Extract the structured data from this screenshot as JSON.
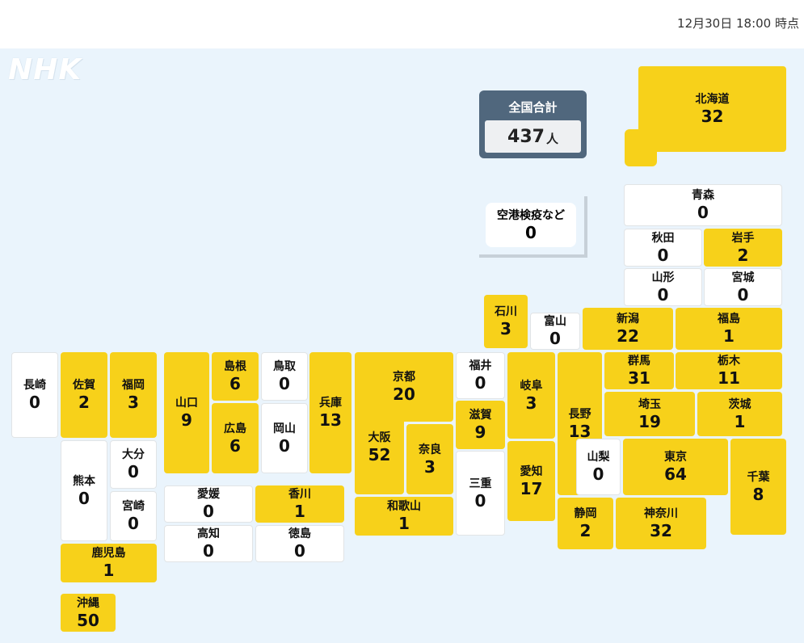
{
  "timestamp": "12月30日 18:00 時点",
  "logo": "NHK",
  "total": {
    "label": "全国合計",
    "value": "437",
    "unit": "人"
  },
  "airport": {
    "name": "空港検疫など",
    "value": "0"
  },
  "colors": {
    "case_present": "#f7d11a",
    "zero": "#ffffff",
    "total_box": "#50677d",
    "background": "#eaf4fc"
  },
  "prefectures": [
    {
      "id": "hokkaido",
      "name": "北海道",
      "value": "32"
    },
    {
      "id": "aomori",
      "name": "青森",
      "value": "0"
    },
    {
      "id": "akita",
      "name": "秋田",
      "value": "0"
    },
    {
      "id": "iwate",
      "name": "岩手",
      "value": "2"
    },
    {
      "id": "yamagata",
      "name": "山形",
      "value": "0"
    },
    {
      "id": "miyagi",
      "name": "宮城",
      "value": "0"
    },
    {
      "id": "ishikawa",
      "name": "石川",
      "value": "3"
    },
    {
      "id": "toyama",
      "name": "富山",
      "value": "0"
    },
    {
      "id": "niigata",
      "name": "新潟",
      "value": "22"
    },
    {
      "id": "fukushima",
      "name": "福島",
      "value": "1"
    },
    {
      "id": "nagasaki",
      "name": "長崎",
      "value": "0"
    },
    {
      "id": "saga",
      "name": "佐賀",
      "value": "2"
    },
    {
      "id": "fukuoka",
      "name": "福岡",
      "value": "3"
    },
    {
      "id": "yamaguchi",
      "name": "山口",
      "value": "9"
    },
    {
      "id": "shimane",
      "name": "島根",
      "value": "6"
    },
    {
      "id": "tottori",
      "name": "鳥取",
      "value": "0"
    },
    {
      "id": "hyogo",
      "name": "兵庫",
      "value": "13"
    },
    {
      "id": "kyoto",
      "name": "京都",
      "value": "20"
    },
    {
      "id": "fukui",
      "name": "福井",
      "value": "0"
    },
    {
      "id": "gifu",
      "name": "岐阜",
      "value": "3"
    },
    {
      "id": "nagano",
      "name": "長野",
      "value": "13"
    },
    {
      "id": "gunma",
      "name": "群馬",
      "value": "31"
    },
    {
      "id": "tochigi",
      "name": "栃木",
      "value": "11"
    },
    {
      "id": "hiroshima",
      "name": "広島",
      "value": "6"
    },
    {
      "id": "okayama",
      "name": "岡山",
      "value": "0"
    },
    {
      "id": "osaka",
      "name": "大阪",
      "value": "52"
    },
    {
      "id": "nara",
      "name": "奈良",
      "value": "3"
    },
    {
      "id": "shiga",
      "name": "滋賀",
      "value": "9"
    },
    {
      "id": "saitama",
      "name": "埼玉",
      "value": "19"
    },
    {
      "id": "ibaraki",
      "name": "茨城",
      "value": "1"
    },
    {
      "id": "kumamoto",
      "name": "熊本",
      "value": "0"
    },
    {
      "id": "oita",
      "name": "大分",
      "value": "0"
    },
    {
      "id": "miyazaki",
      "name": "宮崎",
      "value": "0"
    },
    {
      "id": "ehime",
      "name": "愛媛",
      "value": "0"
    },
    {
      "id": "kagawa",
      "name": "香川",
      "value": "1"
    },
    {
      "id": "kochi",
      "name": "高知",
      "value": "0"
    },
    {
      "id": "tokushima",
      "name": "徳島",
      "value": "0"
    },
    {
      "id": "mie",
      "name": "三重",
      "value": "0"
    },
    {
      "id": "aichi",
      "name": "愛知",
      "value": "17"
    },
    {
      "id": "yamanashi",
      "name": "山梨",
      "value": "0"
    },
    {
      "id": "tokyo",
      "name": "東京",
      "value": "64"
    },
    {
      "id": "chiba",
      "name": "千葉",
      "value": "8"
    },
    {
      "id": "wakayama",
      "name": "和歌山",
      "value": "1"
    },
    {
      "id": "shizuoka",
      "name": "静岡",
      "value": "2"
    },
    {
      "id": "kanagawa",
      "name": "神奈川",
      "value": "32"
    },
    {
      "id": "kagoshima",
      "name": "鹿児島",
      "value": "1"
    },
    {
      "id": "okinawa",
      "name": "沖縄",
      "value": "50"
    }
  ]
}
